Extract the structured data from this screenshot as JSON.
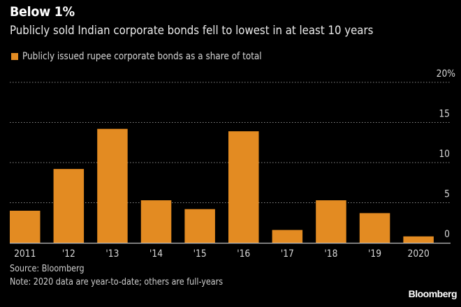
{
  "chart_data": {
    "type": "bar",
    "title": "Below 1%",
    "subtitle": "Publicly sold Indian corporate bonds fell to lowest in at least 10 years",
    "categories": [
      "2011",
      "'12",
      "'13",
      "'14",
      "'15",
      "'16",
      "'17",
      "'18",
      "'19",
      "2020"
    ],
    "series": [
      {
        "name": "Publicly issued rupee corporate bonds as a share of total",
        "values": [
          4.0,
          9.2,
          14.2,
          5.3,
          4.2,
          13.9,
          1.6,
          5.3,
          3.7,
          0.8
        ],
        "color": "#e38b22"
      }
    ],
    "xlabel": "",
    "ylabel": "",
    "ylim": [
      0,
      20
    ],
    "yticks": [
      0,
      5,
      10,
      15,
      20
    ],
    "ytick_labels": [
      "0",
      "5",
      "10",
      "15",
      "20%"
    ],
    "y_axis_side": "right",
    "grid": true,
    "legend_placement": "top-left"
  },
  "footer": {
    "source": "Source: Bloomberg",
    "note": "Note: 2020 data are year-to-date; others are full-years",
    "brand": "Bloomberg"
  },
  "colors": {
    "background": "#000000",
    "bar": "#e38b22",
    "grid": "#8a8a8a",
    "axis": "#bdbdbd",
    "text": "#e8e8e8"
  }
}
